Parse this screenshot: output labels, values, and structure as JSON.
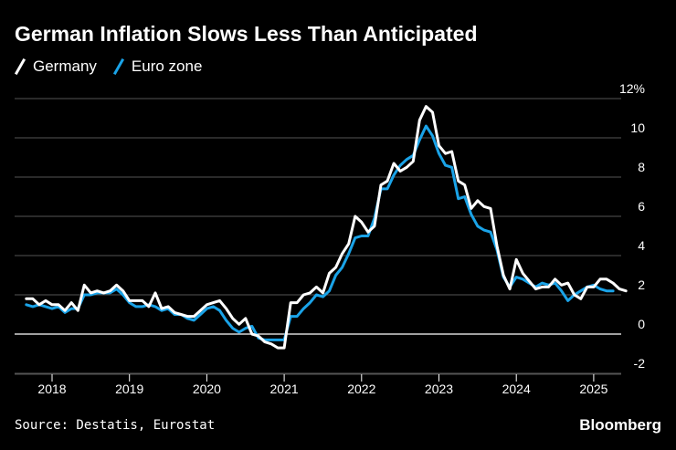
{
  "title": "German Inflation Slows Less Than Anticipated",
  "source": "Source: Destatis, Eurostat",
  "brand": "Bloomberg",
  "colors": {
    "germany": "#ffffff",
    "euro_zone": "#1aa3e8",
    "background": "#000000",
    "grid": "#555555"
  },
  "chart_data": {
    "type": "line",
    "title": "German Inflation Slows Less Than Anticipated",
    "xlabel": "",
    "ylabel": "",
    "ylim": [
      -2,
      12
    ],
    "y_ticks": [
      -2,
      0,
      2,
      4,
      6,
      8,
      10,
      12
    ],
    "y_tick_labels": [
      "-2",
      "0",
      "2",
      "4",
      "6",
      "8",
      "10",
      "12%"
    ],
    "x_ticks": [
      2018,
      2019,
      2020,
      2021,
      2022,
      2023,
      2024,
      2025
    ],
    "x_tick_labels": [
      "2018",
      "2019",
      "2020",
      "2021",
      "2022",
      "2023",
      "2024",
      "2025"
    ],
    "x_start": 2017.667,
    "x_step": 0.08333,
    "legend_position": "top-left",
    "series": [
      {
        "name": "Germany",
        "values": [
          1.8,
          1.8,
          1.5,
          1.7,
          1.5,
          1.5,
          1.2,
          1.6,
          1.2,
          2.5,
          2.1,
          2.2,
          2.1,
          2.2,
          2.5,
          2.2,
          1.7,
          1.7,
          1.7,
          1.4,
          2.1,
          1.3,
          1.4,
          1.1,
          1.0,
          0.9,
          0.9,
          1.2,
          1.5,
          1.6,
          1.7,
          1.3,
          0.8,
          0.5,
          0.8,
          0.0,
          -0.1,
          -0.4,
          -0.5,
          -0.7,
          -0.7,
          1.6,
          1.6,
          2.0,
          2.1,
          2.4,
          2.1,
          3.1,
          3.4,
          4.1,
          4.6,
          6.0,
          5.7,
          5.2,
          5.5,
          7.6,
          7.8,
          8.7,
          8.3,
          8.5,
          8.8,
          10.9,
          11.6,
          11.3,
          9.6,
          9.2,
          9.3,
          7.8,
          7.6,
          6.4,
          6.8,
          6.5,
          6.4,
          4.5,
          3.0,
          2.3,
          3.8,
          3.1,
          2.7,
          2.3,
          2.4,
          2.4,
          2.8,
          2.5,
          2.6,
          2.0,
          1.8,
          2.4,
          2.4,
          2.8,
          2.8,
          2.6,
          2.3,
          2.2
        ]
      },
      {
        "name": "Euro zone",
        "values": [
          1.5,
          1.4,
          1.5,
          1.4,
          1.3,
          1.4,
          1.1,
          1.3,
          1.3,
          2.0,
          2.0,
          2.1,
          2.1,
          2.1,
          2.3,
          2.0,
          1.6,
          1.4,
          1.4,
          1.5,
          1.4,
          1.2,
          1.3,
          1.0,
          1.0,
          0.8,
          0.7,
          1.0,
          1.3,
          1.4,
          1.2,
          0.7,
          0.3,
          0.1,
          0.3,
          0.4,
          -0.2,
          -0.3,
          -0.3,
          -0.3,
          -0.3,
          0.9,
          0.9,
          1.3,
          1.6,
          2.0,
          1.9,
          2.2,
          3.0,
          3.4,
          4.1,
          4.9,
          5.0,
          5.0,
          5.9,
          7.4,
          7.4,
          8.1,
          8.6,
          8.9,
          9.1,
          9.9,
          10.6,
          10.1,
          9.2,
          8.6,
          8.5,
          6.9,
          7.0,
          6.1,
          5.5,
          5.3,
          5.2,
          4.3,
          2.9,
          2.4,
          2.9,
          2.8,
          2.6,
          2.4,
          2.6,
          2.5,
          2.6,
          2.2,
          1.7,
          2.0,
          2.2,
          2.4,
          2.5,
          2.3,
          2.2,
          2.2
        ]
      }
    ]
  }
}
